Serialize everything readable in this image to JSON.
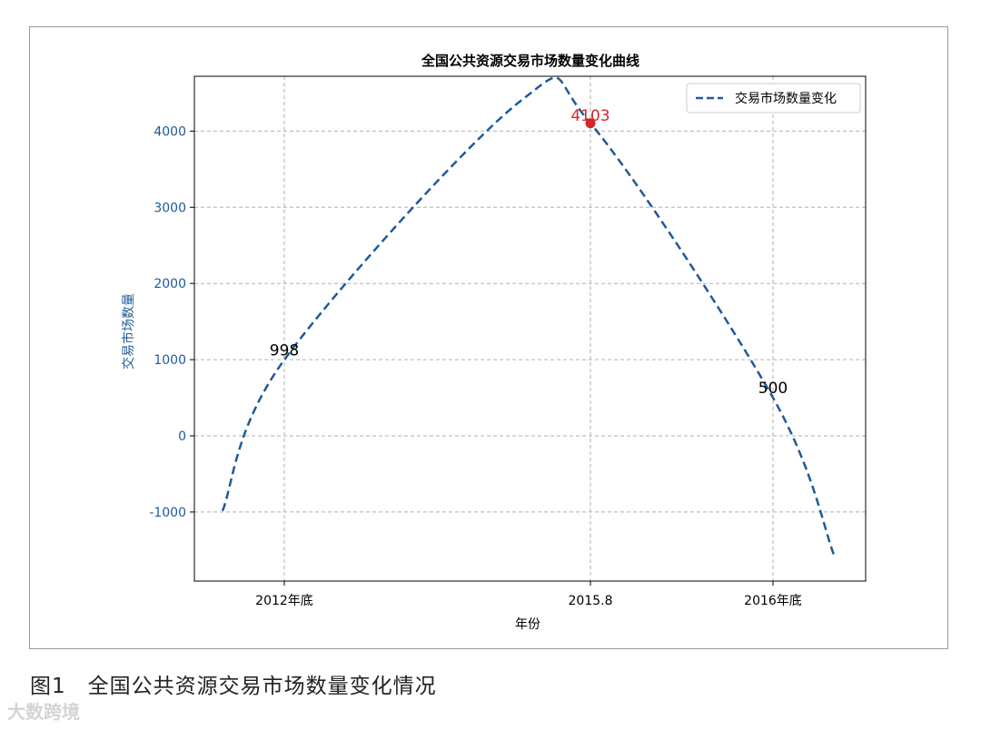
{
  "chart_data": {
    "type": "line",
    "title": "全国公共资源交易市场数量变化曲线",
    "xlabel": "年份",
    "ylabel": "交易市场数量",
    "x_ticks": [
      {
        "x": 2012.0,
        "label": "2012年底"
      },
      {
        "x": 2015.8,
        "label": "2015.8"
      },
      {
        "x": 2016.0,
        "label": "2016年底"
      }
    ],
    "ylim": [
      -1900,
      4700
    ],
    "yticks": [
      -1000,
      0,
      1000,
      2000,
      3000,
      4000
    ],
    "grid": true,
    "legend": "top-right",
    "series": [
      {
        "name": "交易市场数量变化",
        "style": "dashed",
        "color": "#1f5a99",
        "points": [
          {
            "x": 2011.25,
            "y": -985
          },
          {
            "x": 2012.0,
            "y": 998
          },
          {
            "x": 2014.1,
            "y": 4395
          },
          {
            "x": 2015.8,
            "y": 4103
          },
          {
            "x": 2016.0,
            "y": 500
          },
          {
            "x": 2016.75,
            "y": -1560
          }
        ]
      }
    ],
    "annotations": [
      {
        "x": 2012.0,
        "y": 998,
        "text": "998",
        "color": "#000000"
      },
      {
        "x": 2015.8,
        "y": 4103,
        "text": "4103",
        "color": "#d62728",
        "marker": true
      },
      {
        "x": 2016.0,
        "y": 500,
        "text": "500",
        "color": "#000000"
      }
    ]
  },
  "caption": "图1　全国公共资源交易市场数量变化情况",
  "watermark": "大数跨境"
}
